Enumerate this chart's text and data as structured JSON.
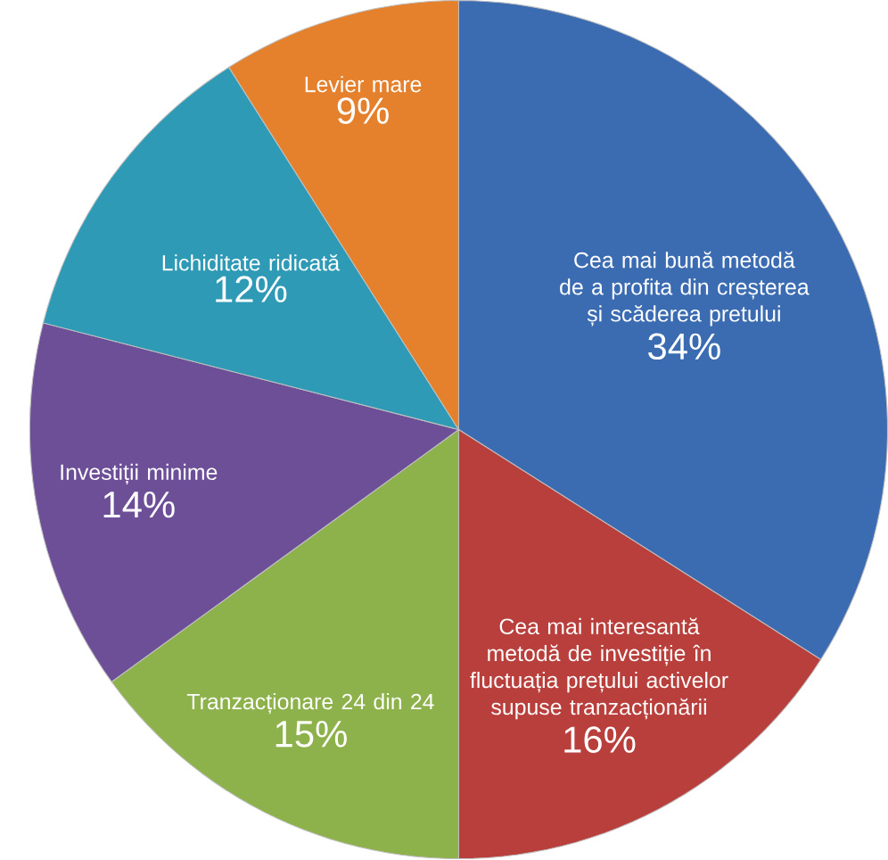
{
  "chart_data": {
    "type": "pie",
    "categories": [
      "Cea mai bună metodă de a profita din creșterea și scăderea pretului",
      "Cea mai interesantă metodă de investiție în fluctuația prețului activelor supuse tranzacționării",
      "Tranzacționare 24 din 24",
      "Investiții minime",
      "Lichiditate ridicată",
      "Levier mare"
    ],
    "values": [
      34,
      16,
      15,
      14,
      12,
      9
    ],
    "value_labels": [
      "34%",
      "16%",
      "15%",
      "14%",
      "12%",
      "9%"
    ],
    "colors": [
      "#3b6cb2",
      "#b83f3b",
      "#8db14b",
      "#6d4f98",
      "#2f9ab5",
      "#e5812c"
    ]
  }
}
